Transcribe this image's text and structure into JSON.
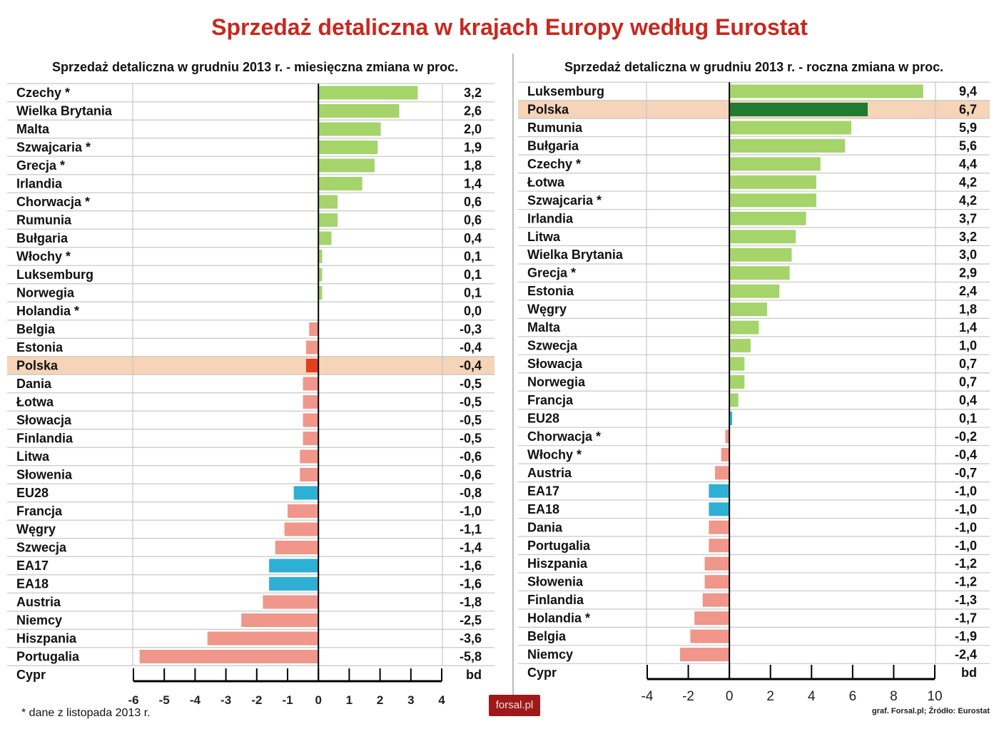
{
  "title": "Sprzedaż detaliczna w krajach Europy według Eurostat",
  "footnote": "* dane z listopada 2013 r.",
  "credit": "graf. Forsal.pl; Źródło: Eurostat",
  "logo": "forsal.pl",
  "colors": {
    "title": "#c8281e",
    "positive": "#a5d46a",
    "negative": "#f0968a",
    "aggregate": "#2eb0d4",
    "polska_positive": "#1e7b2f",
    "polska_negative": "#e2401c",
    "highlight_row": "#f5d4b8"
  },
  "chart_data": [
    {
      "type": "bar",
      "orientation": "horizontal",
      "title": "Sprzedaż detaliczna w grudniu 2013 r. - miesięczna zmiana w proc.",
      "xlim": [
        -6,
        4
      ],
      "xticks": [
        -6,
        -5,
        -4,
        -3,
        -2,
        -1,
        0,
        1,
        2,
        3,
        4
      ],
      "highlight": "Polska",
      "categories": [
        "Czechy *",
        "Wielka Brytania",
        "Malta",
        "Szwajcaria *",
        "Grecja *",
        "Irlandia",
        "Chorwacja *",
        "Rumunia",
        "Bułgaria",
        "Włochy *",
        "Luksemburg",
        "Norwegia",
        "Holandia *",
        "Belgia",
        "Estonia",
        "Polska",
        "Dania",
        "Łotwa",
        "Słowacja",
        "Finlandia",
        "Litwa",
        "Słowenia",
        "EU28",
        "Francja",
        "Węgry",
        "Szwecja",
        "EA17",
        "EA18",
        "Austria",
        "Niemcy",
        "Hiszpania",
        "Portugalia",
        "Cypr"
      ],
      "values": [
        3.2,
        2.6,
        2.0,
        1.9,
        1.8,
        1.4,
        0.6,
        0.6,
        0.4,
        0.1,
        0.1,
        0.1,
        0.0,
        -0.3,
        -0.4,
        -0.4,
        -0.5,
        -0.5,
        -0.5,
        -0.5,
        -0.6,
        -0.6,
        -0.8,
        -1.0,
        -1.1,
        -1.4,
        -1.6,
        -1.6,
        -1.8,
        -2.5,
        -3.6,
        -5.8,
        null
      ],
      "value_labels": [
        "3,2",
        "2,6",
        "2,0",
        "1,9",
        "1,8",
        "1,4",
        "0,6",
        "0,6",
        "0,4",
        "0,1",
        "0,1",
        "0,1",
        "0,0",
        "-0,3",
        "-0,4",
        "-0,4",
        "-0,5",
        "-0,5",
        "-0,5",
        "-0,5",
        "-0,6",
        "-0,6",
        "-0,8",
        "-1,0",
        "-1,1",
        "-1,4",
        "-1,6",
        "-1,6",
        "-1,8",
        "-2,5",
        "-3,6",
        "-5,8",
        "bd"
      ]
    },
    {
      "type": "bar",
      "orientation": "horizontal",
      "title": "Sprzedaż detaliczna w grudniu 2013 r. - roczna zmiana w proc.",
      "xlim": [
        -4,
        10
      ],
      "xticks": [
        -4,
        -2,
        0,
        2,
        4,
        6,
        8,
        10
      ],
      "highlight": "Polska",
      "categories": [
        "Luksemburg",
        "Polska",
        "Rumunia",
        "Bułgaria",
        "Czechy *",
        "Łotwa",
        "Szwajcaria *",
        "Irlandia",
        "Litwa",
        "Wielka Brytania",
        "Grecja *",
        "Estonia",
        "Węgry",
        "Malta",
        "Szwecja",
        "Słowacja",
        "Norwegia",
        "Francja",
        "EU28",
        "Chorwacja *",
        "Włochy *",
        "Austria",
        "EA17",
        "EA18",
        "Dania",
        "Portugalia",
        "Hiszpania",
        "Słowenia",
        "Finlandia",
        "Holandia *",
        "Belgia",
        "Niemcy",
        "Cypr"
      ],
      "values": [
        9.4,
        6.7,
        5.9,
        5.6,
        4.4,
        4.2,
        4.2,
        3.7,
        3.2,
        3.0,
        2.9,
        2.4,
        1.8,
        1.4,
        1.0,
        0.7,
        0.7,
        0.4,
        0.1,
        -0.2,
        -0.4,
        -0.7,
        -1.0,
        -1.0,
        -1.0,
        -1.0,
        -1.2,
        -1.2,
        -1.3,
        -1.7,
        -1.9,
        -2.4,
        null
      ],
      "value_labels": [
        "9,4",
        "6,7",
        "5,9",
        "5,6",
        "4,4",
        "4,2",
        "4,2",
        "3,7",
        "3,2",
        "3,0",
        "2,9",
        "2,4",
        "1,8",
        "1,4",
        "1,0",
        "0,7",
        "0,7",
        "0,4",
        "0,1",
        "-0,2",
        "-0,4",
        "-0,7",
        "-1,0",
        "-1,0",
        "-1,0",
        "-1,0",
        "-1,2",
        "-1,2",
        "-1,3",
        "-1,7",
        "-1,9",
        "-2,4",
        "bd"
      ]
    }
  ]
}
